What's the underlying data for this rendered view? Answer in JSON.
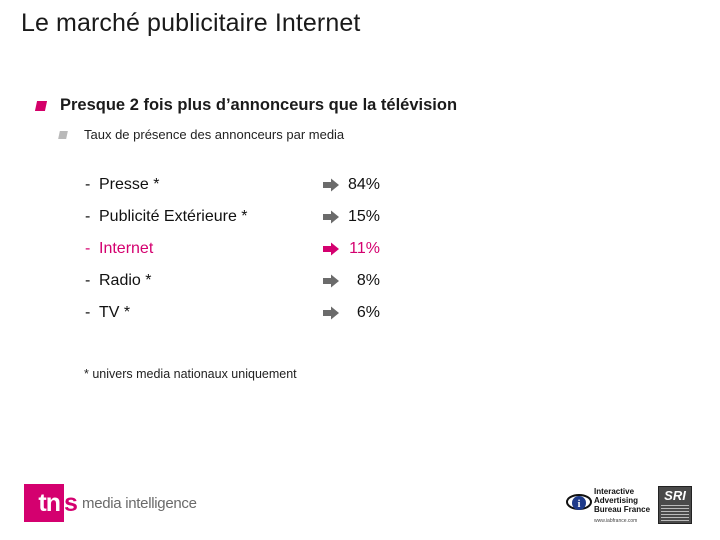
{
  "slide": {
    "title": "Le marché publicitaire Internet",
    "heading": "Presque 2 fois plus d’annonceurs que la télévision",
    "subheading": "Taux de présence des annonceurs par media",
    "rows": [
      {
        "dash": "-",
        "label": "Presse *",
        "value": "84%"
      },
      {
        "dash": "-",
        "label": "Publicité Extérieure *",
        "value": "15%"
      },
      {
        "dash": "-",
        "label": "Internet",
        "value": "11%"
      },
      {
        "dash": "-",
        "label": "Radio *",
        "value": "8%"
      },
      {
        "dash": "-",
        "label": "TV *",
        "value": "6%"
      }
    ],
    "footnote": "* univers media nationaux uniquement"
  },
  "logos": {
    "tns_mark": "tn",
    "tns_s": "s",
    "tns_sub": "media intelligence",
    "iab_text": "Interactive Advertising Bureau France",
    "iab_url": "www.iabfrance.com",
    "sri": "SRI"
  },
  "colors": {
    "accent": "#d4006f",
    "bullet_sub": "#b9b9b9",
    "arrow_default": "#6b6b6b"
  }
}
